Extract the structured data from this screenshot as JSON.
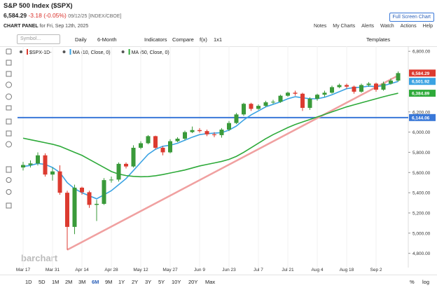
{
  "header": {
    "title": "S&P 500 Index ($SPX)",
    "price": "6,584.29",
    "change": "-3.18 (-0.05%)",
    "date": "09/12/25 [INDEX/CBOE]",
    "fullscreen": "Full Screen Chart",
    "panel": "CHART PANEL",
    "panel_date": "for Fri, Sep 12th, 2025",
    "links": [
      "Notes",
      "My Charts",
      "Alerts",
      "Watch",
      "Actions",
      "Help"
    ]
  },
  "toolbar": {
    "symbol": "Symbol...",
    "items": [
      "Daily",
      "6-Month",
      "Indicators",
      "Compare",
      "f(x)",
      "1x1"
    ],
    "templates": "Templates"
  },
  "ranges": {
    "buttons": [
      "1D",
      "5D",
      "1M",
      "2M",
      "3M",
      "6M",
      "9M",
      "1Y",
      "2Y",
      "3Y",
      "5Y",
      "10Y",
      "20Y",
      "Max"
    ],
    "right": [
      "%",
      "log"
    ]
  },
  "watermark": "barchart",
  "chart_data": {
    "type": "candlestick",
    "categories": [
      "Mar 17",
      null,
      null,
      null,
      "Mar 31",
      null,
      null,
      null,
      "Apr 14",
      null,
      null,
      null,
      "Apr 28",
      null,
      null,
      null,
      "May 12",
      null,
      null,
      null,
      "May 27",
      null,
      null,
      null,
      "Jun 9",
      null,
      null,
      null,
      "Jun 23",
      null,
      null,
      null,
      "Jul 7",
      null,
      null,
      null,
      "Jul 21",
      null,
      null,
      null,
      "Aug 4",
      null,
      null,
      null,
      "Aug 18",
      null,
      null,
      null,
      "Sep 2",
      null,
      null,
      null
    ],
    "series": [
      {
        "name": "$SPX-1D-",
        "up_color": "#3a9a3a",
        "down_color": "#dc3b30",
        "open": [
          5650,
          5675,
          5690,
          5770,
          5580,
          5611,
          5400,
          5062,
          5450,
          5405,
          5280,
          5290,
          5525,
          5530,
          5686,
          5660,
          5845,
          5890,
          5960,
          5845,
          5800,
          5910,
          5935,
          6000,
          6020,
          6010,
          5978,
          5970,
          6025,
          6090,
          6175,
          6280,
          6230,
          6260,
          6295,
          6300,
          6360,
          6390,
          6380,
          6240,
          6330,
          6370,
          6390,
          6445,
          6466,
          6450,
          6400,
          6466,
          6480,
          6420,
          6480,
          6510
        ],
        "high": [
          5705,
          5720,
          5800,
          5790,
          5651,
          5671,
          5420,
          5480,
          5460,
          5420,
          5330,
          5545,
          5560,
          5700,
          5700,
          5870,
          5910,
          5970,
          5965,
          5860,
          5930,
          5950,
          6015,
          6055,
          6040,
          6025,
          6000,
          6040,
          6110,
          6190,
          6290,
          6290,
          6275,
          6310,
          6320,
          6370,
          6400,
          6410,
          6390,
          6345,
          6380,
          6410,
          6460,
          6480,
          6480,
          6460,
          6480,
          6495,
          6490,
          6500,
          6530,
          6600
        ],
        "low": [
          5620,
          5650,
          5670,
          5560,
          5520,
          5380,
          4835,
          4990,
          5380,
          5250,
          5120,
          5280,
          5500,
          5510,
          5640,
          5650,
          5830,
          5880,
          5830,
          5770,
          5790,
          5900,
          5920,
          5990,
          5995,
          5960,
          5950,
          5945,
          6010,
          6080,
          6160,
          6210,
          6220,
          6250,
          6280,
          6290,
          6350,
          6360,
          6210,
          6220,
          6310,
          6350,
          6380,
          6435,
          6430,
          6380,
          6390,
          6450,
          6400,
          6410,
          6470,
          6500
        ],
        "close": [
          5675,
          5690,
          5770,
          5580,
          5611,
          5400,
          5062,
          5450,
          5405,
          5280,
          5290,
          5525,
          5530,
          5686,
          5660,
          5845,
          5890,
          5960,
          5845,
          5800,
          5910,
          5935,
          6000,
          6020,
          6010,
          5978,
          5970,
          6025,
          6090,
          6175,
          6280,
          6230,
          6260,
          6295,
          6300,
          6360,
          6390,
          6380,
          6240,
          6330,
          6370,
          6390,
          6445,
          6466,
          6450,
          6400,
          6466,
          6480,
          6420,
          6480,
          6510,
          6584
        ]
      },
      {
        "name": "MA (10, Close, 0)",
        "color": "#3ba3e3",
        "values": [
          5660,
          5670,
          5690,
          5680,
          5650,
          5600,
          5500,
          5440,
          5400,
          5370,
          5340,
          5380,
          5420,
          5480,
          5540,
          5620,
          5700,
          5780,
          5830,
          5860,
          5870,
          5890,
          5920,
          5950,
          5975,
          5985,
          5990,
          5995,
          6020,
          6060,
          6120,
          6170,
          6210,
          6250,
          6275,
          6300,
          6330,
          6350,
          6340,
          6330,
          6330,
          6345,
          6370,
          6400,
          6430,
          6440,
          6445,
          6455,
          6450,
          6460,
          6480,
          6502
        ]
      },
      {
        "name": "MA (50, Close, 0)",
        "color": "#2eaa3a",
        "values": [
          5940,
          5925,
          5910,
          5895,
          5880,
          5860,
          5830,
          5800,
          5770,
          5730,
          5690,
          5650,
          5610,
          5585,
          5570,
          5562,
          5558,
          5560,
          5568,
          5580,
          5595,
          5610,
          5625,
          5645,
          5665,
          5680,
          5695,
          5710,
          5730,
          5760,
          5800,
          5845,
          5890,
          5935,
          5975,
          6010,
          6045,
          6075,
          6100,
          6125,
          6150,
          6175,
          6200,
          6225,
          6250,
          6270,
          6290,
          6310,
          6330,
          6350,
          6368,
          6385
        ]
      }
    ],
    "ylim": [
      4680,
      6850
    ],
    "yticks": [
      {
        "value": 4800,
        "label": "4,800.00"
      },
      {
        "value": 5000,
        "label": "5,000.00"
      },
      {
        "value": 5200,
        "label": "5,200.00"
      },
      {
        "value": 5400,
        "label": "5,400.00"
      },
      {
        "value": 5600,
        "label": "5,600.00"
      },
      {
        "value": 5800,
        "label": "5,800.00"
      },
      {
        "value": 6000,
        "label": "6,000.00"
      },
      {
        "value": 6200,
        "label": "6,200.00"
      },
      {
        "value": 6800,
        "label": "6,800.00"
      }
    ],
    "trendline": {
      "x": [
        6,
        51
      ],
      "y": [
        4835,
        6560
      ],
      "color": "#f0a0a0"
    },
    "hline": {
      "value": 6144.06,
      "color": "#3a78d8"
    },
    "price_tags": [
      {
        "value": 6584.29,
        "label": "6,584.29",
        "color": "#dc3b30"
      },
      {
        "value": 6501.92,
        "label": "6,501.92",
        "color": "#3ba3e3"
      },
      {
        "value": 6384.89,
        "label": "6,384.89",
        "color": "#2eaa3a"
      },
      {
        "value": 6144.06,
        "label": "6,144.06",
        "color": "#3a78d8"
      }
    ]
  }
}
